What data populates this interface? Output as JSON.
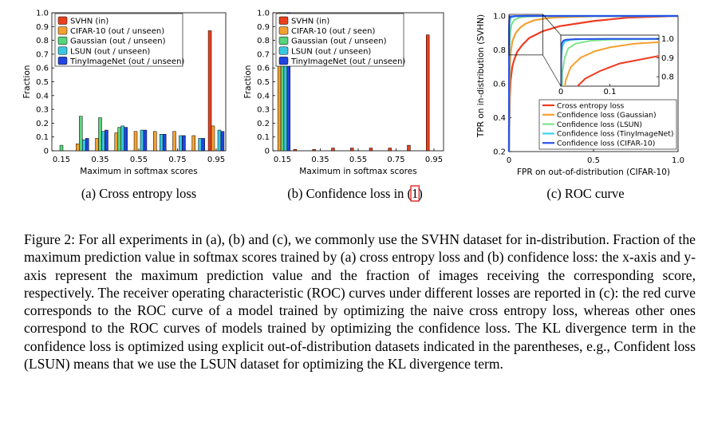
{
  "colors": {
    "svhn": "#e8401c",
    "cifar10": "#f4a030",
    "gaussian": "#58d47c",
    "lsun": "#38c6e0",
    "tinyimagenet": "#2244e0",
    "roc_red": "#ee3c22",
    "roc_orange": "#f4a030",
    "roc_green": "#7ee38e",
    "roc_cyan": "#40d2ee",
    "roc_blue": "#2a52e8"
  },
  "panels": [
    {
      "caption_prefix": "(a) Cross entropy loss",
      "caption_suffix": "",
      "chart_data": {
        "type": "bar",
        "ylabel": "Fraction",
        "xlabel": "Maximum in softmax scores",
        "ylim": [
          0,
          1.0
        ],
        "yticks": [
          "0",
          "0.1",
          "0.2",
          "0.3",
          "0.4",
          "0.5",
          "0.6",
          "0.7",
          "0.8",
          "0.9",
          "1.0"
        ],
        "xticks": [
          "0.15",
          "0.35",
          "0.55",
          "0.75",
          "0.95"
        ],
        "x": [
          0.15,
          0.25,
          0.35,
          0.45,
          0.55,
          0.65,
          0.75,
          0.85,
          0.95
        ],
        "series": [
          {
            "name": "SVHN (in)",
            "values": [
              0.0,
              0.0,
              0.0,
              0.0,
              0.0,
              0.0,
              0.0,
              0.0,
              0.87
            ]
          },
          {
            "name": "CIFAR-10 (out / unseen)",
            "values": [
              0.0,
              0.05,
              0.09,
              0.13,
              0.14,
              0.14,
              0.14,
              0.11,
              0.18
            ]
          },
          {
            "name": "Gaussian (out / unseen)",
            "values": [
              0.04,
              0.25,
              0.24,
              0.17,
              0.0,
              0.0,
              0.0,
              0.0,
              0.0
            ]
          },
          {
            "name": "LSUN (out / unseen)",
            "values": [
              0.0,
              0.08,
              0.14,
              0.18,
              0.15,
              0.12,
              0.11,
              0.09,
              0.15
            ]
          },
          {
            "name": "TinyImageNet (out / unseen)",
            "values": [
              0.0,
              0.09,
              0.15,
              0.17,
              0.15,
              0.12,
              0.11,
              0.09,
              0.14
            ]
          }
        ],
        "legend": "top-left"
      }
    },
    {
      "caption_prefix": "(b) Confidence loss in (",
      "caption_cite": "1",
      "caption_suffix": ")",
      "chart_data": {
        "type": "bar",
        "ylabel": "Fraction",
        "xlabel": "Maximum in softmax scores",
        "ylim": [
          0,
          1.0
        ],
        "yticks": [
          "0",
          "0.1",
          "0.2",
          "0.3",
          "0.4",
          "0.5",
          "0.6",
          "0.7",
          "0.8",
          "0.9",
          "1.0"
        ],
        "xticks": [
          "0.15",
          "0.35",
          "0.55",
          "0.75",
          "0.95"
        ],
        "x": [
          0.15,
          0.25,
          0.35,
          0.45,
          0.55,
          0.65,
          0.75,
          0.85,
          0.95
        ],
        "series": [
          {
            "name": "SVHN (in)",
            "values": [
              0.0,
              0.01,
              0.01,
              0.02,
              0.02,
              0.02,
              0.02,
              0.04,
              0.84
            ]
          },
          {
            "name": "CIFAR-10 (out / seen)",
            "values": [
              1.0,
              0.0,
              0.0,
              0.0,
              0.0,
              0.0,
              0.0,
              0.0,
              0.0
            ]
          },
          {
            "name": "Gaussian (out / unseen)",
            "values": [
              1.0,
              0.0,
              0.0,
              0.0,
              0.0,
              0.0,
              0.0,
              0.0,
              0.0
            ]
          },
          {
            "name": "LSUN (out / unseen)",
            "values": [
              1.0,
              0.0,
              0.0,
              0.0,
              0.0,
              0.0,
              0.0,
              0.0,
              0.0
            ]
          },
          {
            "name": "TinyImageNet (out / unseen)",
            "values": [
              1.0,
              0.0,
              0.0,
              0.0,
              0.0,
              0.0,
              0.0,
              0.0,
              0.0
            ]
          }
        ],
        "legend": "top-left"
      }
    },
    {
      "caption_prefix": "(c) ROC curve",
      "caption_suffix": "",
      "chart_data": {
        "type": "line",
        "ylabel": "TPR on in-distribution (SVHN)",
        "xlabel": "FPR on out-of-distribution (CIFAR-10)",
        "xlim": [
          0,
          1.0
        ],
        "ylim": [
          0.2,
          1.0
        ],
        "xticks": [
          "0",
          "0.5",
          "1.0"
        ],
        "yticks": [
          "0.2",
          "0.4",
          "0.6",
          "0.8",
          "1.0"
        ],
        "series": [
          {
            "name": "Cross entropy loss",
            "x": [
              0,
              0.005,
              0.01,
              0.02,
              0.03,
              0.05,
              0.08,
              0.12,
              0.2,
              0.3,
              0.5,
              0.7,
              1.0
            ],
            "y": [
              0.2,
              0.52,
              0.62,
              0.7,
              0.74,
              0.79,
              0.83,
              0.87,
              0.91,
              0.94,
              0.97,
              0.99,
              1.0
            ]
          },
          {
            "name": "Confidence loss (Gaussian)",
            "x": [
              0,
              0.005,
              0.01,
              0.02,
              0.04,
              0.07,
              0.1,
              0.15,
              0.25,
              0.5,
              1.0
            ],
            "y": [
              0.2,
              0.68,
              0.78,
              0.85,
              0.9,
              0.935,
              0.955,
              0.975,
              0.99,
              0.998,
              1.0
            ]
          },
          {
            "name": "Confidence loss (LSUN)",
            "x": [
              0,
              0.003,
              0.008,
              0.015,
              0.03,
              0.06,
              0.1,
              0.2,
              1.0
            ],
            "y": [
              0.2,
              0.82,
              0.9,
              0.95,
              0.975,
              0.99,
              0.996,
              0.999,
              1.0
            ]
          },
          {
            "name": "Confidence loss (TinyImageNet)",
            "x": [
              0,
              0.001,
              0.003,
              0.008,
              0.02,
              0.05,
              0.1,
              1.0
            ],
            "y": [
              0.2,
              0.9,
              0.96,
              0.985,
              0.995,
              0.999,
              1.0,
              1.0
            ]
          },
          {
            "name": "Confidence loss (CIFAR-10)",
            "x": [
              0,
              0.001,
              0.002,
              0.005,
              0.01,
              0.03,
              0.1,
              1.0
            ],
            "y": [
              0.2,
              0.93,
              0.975,
              0.99,
              0.996,
              0.999,
              1.0,
              1.0
            ]
          }
        ],
        "inset": {
          "xlim": [
            0,
            0.2
          ],
          "ylim": [
            0.75,
            1.02
          ],
          "xticks": [
            "0",
            "0.1"
          ],
          "yticks": [
            "1.0",
            "0.9",
            "0.8"
          ]
        },
        "legend": "bottom-right"
      }
    }
  ],
  "caption_html": "Figure 2: For all experiments in (a), (b) and (c), we commonly use the SVHN dataset for in-distribution. Fraction of the maximum prediction value in softmax scores trained by (a) cross entropy loss and (b) confidence loss: the x-axis and y-axis represent the maximum prediction value and the fraction of images receiving the corresponding score, respectively. The receiver operating characteristic (ROC) curves under different losses are reported in (c): the red curve corresponds to the ROC curve of a model trained by optimizing the naive cross entropy loss, whereas other ones correspond to the ROC curves of models trained by optimizing the confidence loss. The KL divergence term in the confidence loss is optimized using explicit out-of-distribution datasets indicated in the parentheses, e.g., Confident loss (LSUN) means that we use the LSUN dataset for optimizing the KL divergence term."
}
